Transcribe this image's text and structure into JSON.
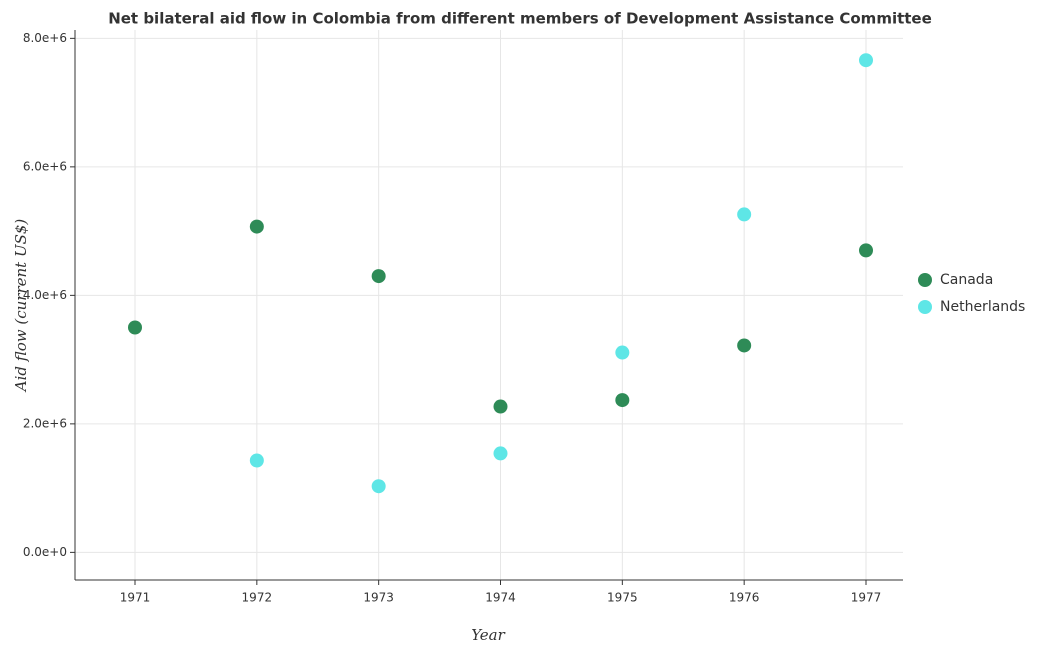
{
  "chart_data": {
    "type": "scatter",
    "title": "Net bilateral aid flow in Colombia from different members of Development Assistance Committee",
    "x_label": "Year",
    "y_label": "Aid flow (current US$)",
    "categories": [
      "1971",
      "1972",
      "1973",
      "1974",
      "1975",
      "1976",
      "1977"
    ],
    "series": [
      {
        "name": "Canada",
        "color": "#2e8b57",
        "values": [
          3500000,
          5070000,
          4300000,
          2270000,
          2370000,
          3220000,
          4700000
        ]
      },
      {
        "name": "Netherlands",
        "color": "#5ee6e6",
        "values": [
          null,
          1430000,
          1030000,
          1540000,
          3110000,
          5260000,
          7660000
        ]
      }
    ],
    "ylim": [
      -430000,
      8130000
    ],
    "yticks": [
      {
        "value": 0,
        "label": "0.0e+0"
      },
      {
        "value": 2000000,
        "label": "2.0e+6"
      },
      {
        "value": 4000000,
        "label": "4.0e+6"
      },
      {
        "value": 6000000,
        "label": "6.0e+6"
      },
      {
        "value": 8000000,
        "label": "8.0e+6"
      }
    ],
    "grid": true,
    "legend": "right"
  }
}
